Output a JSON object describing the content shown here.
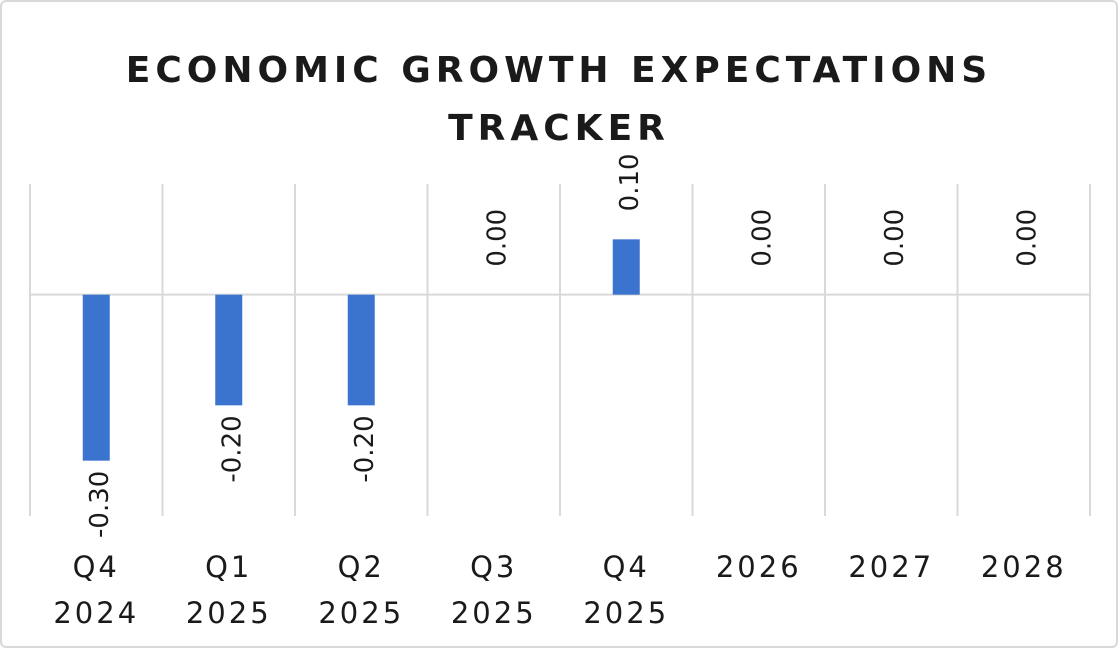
{
  "chart_data": {
    "type": "bar",
    "title": "ECONOMIC GROWTH EXPECTATIONS TRACKER",
    "categories": [
      [
        "Q4",
        "2024"
      ],
      [
        "Q1",
        "2025"
      ],
      [
        "Q2",
        "2025"
      ],
      [
        "Q3",
        "2025"
      ],
      [
        "Q4",
        "2025"
      ],
      [
        "2026"
      ],
      [
        "2027"
      ],
      [
        "2028"
      ]
    ],
    "values": [
      -0.3,
      -0.2,
      -0.2,
      0.0,
      0.1,
      0.0,
      0.0,
      0.0
    ],
    "data_labels": [
      "-0.30",
      "-0.20",
      "-0.20",
      "0.00",
      "0.10",
      "0.00",
      "0.00",
      "0.00"
    ],
    "ylim": [
      -0.4,
      0.2
    ],
    "bar_color": "#3a74cf",
    "grid": "vertical",
    "legend": "none"
  }
}
